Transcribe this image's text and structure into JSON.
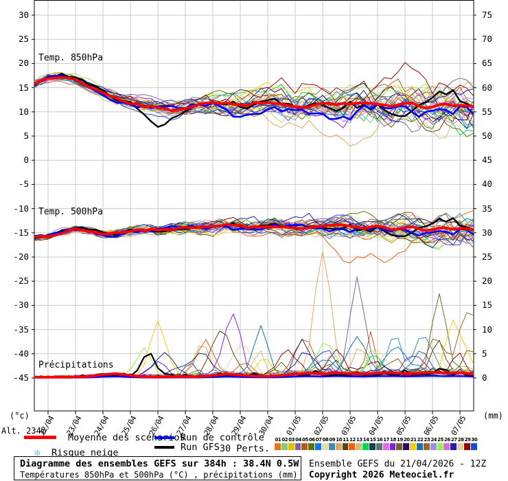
{
  "chart_data": {
    "type": "line",
    "title": "Diagramme des ensembles GEFS sur 384h : 38.4N 0.5W",
    "subtitle": "Températures 850hPa et 500hPa (°C) , précipitations (mm)",
    "x_dates": [
      "22/04",
      "23/04",
      "24/04",
      "25/04",
      "26/04",
      "27/04",
      "28/04",
      "29/04",
      "30/04",
      "01/05",
      "02/05",
      "03/05",
      "04/05",
      "05/05",
      "06/05",
      "07/05"
    ],
    "left_axis": {
      "unit": "(°c)",
      "ticks": [
        30,
        25,
        20,
        15,
        10,
        5,
        0,
        -5,
        -10,
        -15,
        -20,
        -25,
        -30,
        -35,
        -40,
        -45
      ]
    },
    "right_axis": {
      "unit": "(mm)",
      "ticks": [
        75,
        70,
        65,
        60,
        55,
        50,
        45,
        40,
        35,
        30,
        25,
        20,
        15,
        10,
        5,
        0
      ]
    },
    "run_hours": 384,
    "grid_on": true,
    "panels": {
      "t850": {
        "label": "Temp. 850hPa",
        "mean_12h": [
          15.8,
          16.9,
          17.3,
          16.6,
          15.2,
          13.8,
          12.6,
          11.8,
          11.3,
          10.8,
          10.4,
          10.6,
          11.4,
          11.8,
          11.4,
          11.0,
          11.6,
          12.0,
          11.5,
          11.0,
          11.2,
          11.4,
          11.0,
          11.3,
          11.6,
          11.2,
          11.5,
          11.9,
          11.4,
          11.1,
          11.6,
          11.2,
          10.9
        ],
        "spread_start": 0.7,
        "spread_end": 4.2
      },
      "t500": {
        "label": "Temp. 500hPa",
        "mean_12h": [
          -16.0,
          -15.8,
          -15.0,
          -14.3,
          -14.6,
          -15.4,
          -15.2,
          -14.6,
          -14.3,
          -14.5,
          -14.2,
          -13.9,
          -14.1,
          -13.8,
          -13.6,
          -13.8,
          -14.0,
          -13.7,
          -13.9,
          -14.1,
          -13.8,
          -14.0,
          -13.7,
          -13.9,
          -14.2,
          -13.9,
          -14.1,
          -13.8,
          -14.0,
          -14.3,
          -14.0,
          -14.2,
          -14.5
        ],
        "spread_start": 0.5,
        "spread_end": 2.8
      },
      "precip": {
        "label": "Précipitations",
        "mean_12h": [
          0.1,
          0.1,
          0.15,
          0.2,
          0.3,
          0.7,
          0.9,
          0.5,
          0.25,
          0.2,
          0.25,
          0.3,
          0.25,
          0.5,
          0.8,
          0.6,
          0.4,
          0.35,
          0.5,
          0.8,
          1.0,
          0.8,
          1.1,
          0.9,
          0.8,
          1.0,
          1.1,
          0.9,
          1.0,
          1.2,
          1.0,
          1.1,
          0.8
        ]
      }
    },
    "members": 30,
    "member_colors": [
      "#E07820",
      "#8CC87C",
      "#E0C000",
      "#8060A8",
      "#C05A10",
      "#587800",
      "#0878F0",
      "#E8D8A8",
      "#3890A8",
      "#E0A860",
      "#584418",
      "#F06010",
      "#D0C080",
      "#00D850",
      "#1C3C50",
      "#607078",
      "#E070E0",
      "#8020E0",
      "#786028",
      "#2C0870",
      "#F0D000",
      "#1870A8",
      "#A06828",
      "#9890E0",
      "#98F050",
      "#D070D0",
      "#2020A8",
      "#E8D0A8",
      "#900808",
      "#1850C8"
    ],
    "pert_labels": [
      "01",
      "02",
      "03",
      "04",
      "05",
      "06",
      "07",
      "08",
      "09",
      "10",
      "11",
      "12",
      "13",
      "14",
      "15",
      "16",
      "17",
      "18",
      "19",
      "20",
      "21",
      "22",
      "23",
      "24",
      "25",
      "26",
      "27",
      "28",
      "29",
      "30"
    ],
    "special_colors": {
      "mean": "#FF0000",
      "control": "#0000FF",
      "gfs": "#000000"
    },
    "precip_spikes": [
      {
        "member": 25,
        "t": 96,
        "peak": 5.5,
        "width": 9
      },
      {
        "member": 0,
        "t": 100,
        "peak": 5.2,
        "width": 8
      },
      {
        "member": 21,
        "t": 108,
        "peak": 11.0,
        "width": 10
      },
      {
        "member": 18,
        "t": 174,
        "peak": 12.0,
        "width": 9
      },
      {
        "member": 22,
        "t": 198,
        "peak": 10.0,
        "width": 9
      },
      {
        "member": 15,
        "t": 234,
        "peak": 7.5,
        "width": 8
      },
      {
        "member": 10,
        "t": 252,
        "peak": 25.5,
        "width": 10
      },
      {
        "member": 4,
        "t": 282,
        "peak": 17.5,
        "width": 9
      },
      {
        "member": 19,
        "t": 354,
        "peak": 16.0,
        "width": 9
      },
      {
        "member": 23,
        "t": 380,
        "peak": 12.5,
        "width": 12
      }
    ],
    "outliers": [
      {
        "panel": "t850",
        "member": 29,
        "from": 160,
        "to": 384,
        "offset": 3.8
      },
      {
        "panel": "t850",
        "member": 10,
        "from": 190,
        "to": 320,
        "offset": -4.5
      },
      {
        "panel": "t850",
        "member": 13,
        "from": 300,
        "to": 384,
        "offset": -4.0
      },
      {
        "panel": "t850",
        "member": 0,
        "from": 84,
        "to": 132,
        "offset": -3.5
      },
      {
        "panel": "t850",
        "member": -1,
        "from": 156,
        "to": 300,
        "offset": -1.5
      },
      {
        "panel": "t500",
        "member": 12,
        "from": 250,
        "to": 345,
        "offset": -5.5
      }
    ]
  },
  "labels": {
    "altitude": "Alt. 234m"
  },
  "legend": {
    "mean": "Moyenne des scénarios",
    "control": "Run de contrôle",
    "gfs": "Run GFS",
    "perts": "30 Perts.",
    "snow": "Risque neige",
    "snow_icon": "❄"
  },
  "footer": {
    "title": "Diagramme des ensembles GEFS sur 384h : 38.4N 0.5W",
    "subtitle": "Températures 850hPa et 500hPa (°C) , précipitations (mm)",
    "run_info": "Ensemble GEFS du 21/04/2026 - 12Z",
    "copyright": "Copyright 2026 Meteociel.fr"
  }
}
